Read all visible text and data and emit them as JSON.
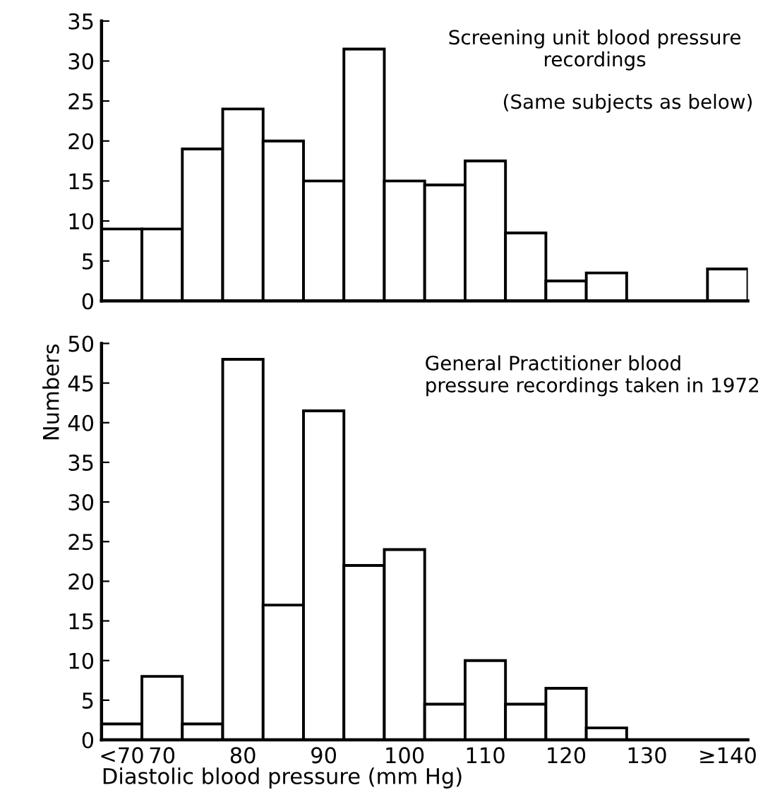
{
  "chart_data": [
    {
      "type": "bar",
      "categories": [
        null,
        null,
        null,
        null,
        null,
        null,
        null,
        null,
        null,
        null,
        null,
        null,
        null,
        null,
        null,
        null
      ],
      "values": [
        9,
        9,
        19,
        24,
        20,
        15,
        31.5,
        15,
        14.5,
        17.5,
        8.5,
        2.5,
        3.5,
        0,
        0,
        4
      ],
      "color": "#ffffff",
      "ylim": [
        0,
        35
      ],
      "yticks": [
        0,
        5,
        10,
        15,
        20,
        25,
        30,
        35
      ],
      "annotations": [
        "Screening unit blood pressure\nrecordings",
        "(Same subjects as below)"
      ]
    },
    {
      "type": "bar",
      "categories": [
        "<70",
        "70",
        null,
        "80",
        null,
        "90",
        null,
        "100",
        null,
        "110",
        null,
        "120",
        null,
        "130",
        null,
        "≥140"
      ],
      "values": [
        2,
        8,
        2,
        48,
        17,
        41.5,
        22,
        24,
        4.5,
        10,
        4.5,
        6.5,
        1.5,
        0,
        0,
        0
      ],
      "color": "#ffffff",
      "ylim": [
        0,
        50
      ],
      "yticks": [
        0,
        5,
        10,
        15,
        20,
        25,
        30,
        35,
        40,
        45,
        50
      ],
      "xlabel": "Diastolic blood pressure (mm Hg)",
      "ylabel": "Numbers",
      "annotations": [
        "General Practitioner blood\npressure recordings taken in 1972"
      ]
    }
  ]
}
